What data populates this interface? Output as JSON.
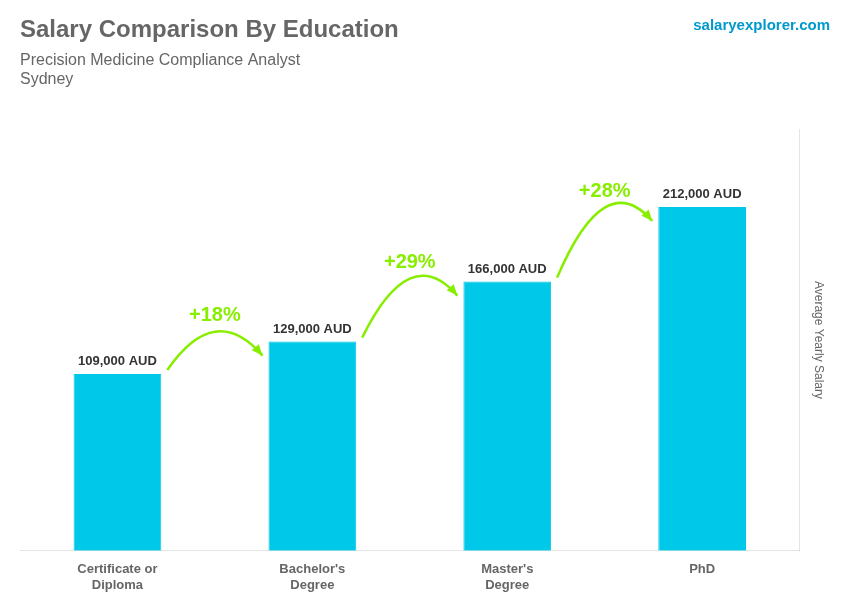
{
  "chart_data": {
    "type": "bar",
    "title": "Salary Comparison By Education",
    "subtitle": [
      "Precision Medicine Compliance Analyst",
      "Sydney"
    ],
    "categories": [
      "Certificate or\nDiploma",
      "Bachelor's\nDegree",
      "Master's\nDegree",
      "PhD"
    ],
    "values": [
      109000,
      129000,
      166000,
      212000
    ],
    "value_labels": [
      "109,000 AUD",
      "129,000 AUD",
      "166,000 AUD",
      "212,000 AUD"
    ],
    "data_labels": true,
    "color": "#00c8e8",
    "ylabel": "Average Yearly Salary",
    "ylim": [
      0,
      260000
    ],
    "grid": false,
    "tick_labels": "x",
    "annotations": [
      {
        "text": "+18%",
        "from": 0,
        "to": 1,
        "color": "#88ee00"
      },
      {
        "text": "+29%",
        "from": 1,
        "to": 2,
        "color": "#88ee00"
      },
      {
        "text": "+28%",
        "from": 2,
        "to": 3,
        "color": "#88ee00"
      },
      {
        "text": "salaryexplorer.com"
      }
    ]
  }
}
